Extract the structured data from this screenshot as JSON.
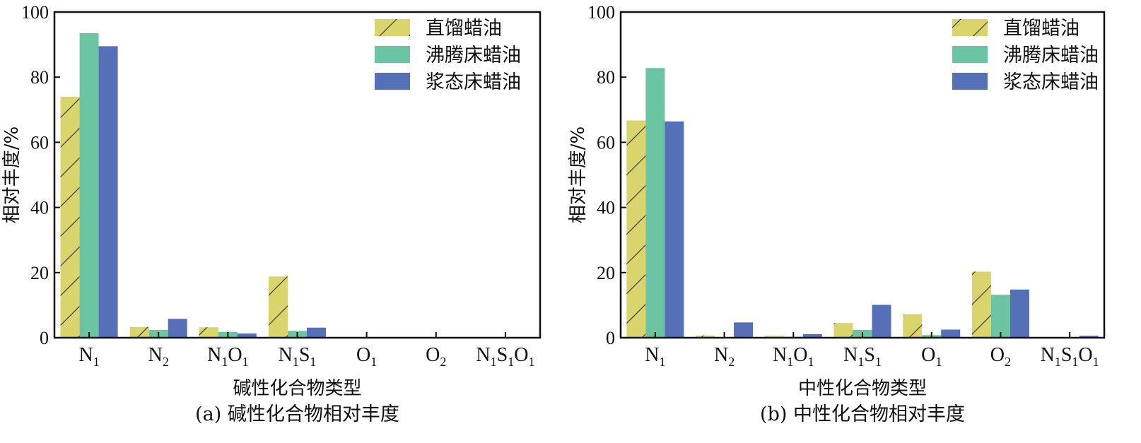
{
  "legend": [
    "直馏蜡油",
    "沸腾床蜡油",
    "浆态床蜡油"
  ],
  "colors": {
    "series": [
      "#d9d46b",
      "#6cc5a2",
      "#5670b8"
    ],
    "hatch": "#444444",
    "axis": "#111111"
  },
  "chart_data": [
    {
      "type": "bar",
      "panel": "a",
      "categories": [
        {
          "main": "N",
          "sub": "1",
          "rest": []
        },
        {
          "main": "N",
          "sub": "2",
          "rest": []
        },
        {
          "main": "N",
          "sub": "1",
          "rest": [
            {
              "main": "O",
              "sub": "1"
            }
          ]
        },
        {
          "main": "N",
          "sub": "1",
          "rest": [
            {
              "main": "S",
              "sub": "1"
            }
          ]
        },
        {
          "main": "O",
          "sub": "1",
          "rest": []
        },
        {
          "main": "O",
          "sub": "2",
          "rest": []
        },
        {
          "main": "N",
          "sub": "1",
          "rest": [
            {
              "main": "S",
              "sub": "1"
            },
            {
              "main": "O",
              "sub": "1"
            }
          ]
        }
      ],
      "series": [
        {
          "name": "直馏蜡油",
          "values": [
            74.0,
            3.3,
            3.2,
            18.8,
            0,
            0,
            0
          ]
        },
        {
          "name": "沸腾床蜡油",
          "values": [
            93.5,
            2.4,
            1.8,
            2.1,
            0,
            0,
            0
          ]
        },
        {
          "name": "浆态床蜡油",
          "values": [
            89.5,
            5.8,
            1.3,
            3.1,
            0,
            0,
            0
          ]
        }
      ],
      "yticks": [
        "0",
        "20",
        "40",
        "60",
        "80",
        "100"
      ],
      "ylim": [
        0,
        100
      ],
      "ylabel": "相对丰度/%",
      "xlabel": "碱性化合物类型",
      "caption": "(a) 碱性化合物相对丰度",
      "legend_position": "top-right"
    },
    {
      "type": "bar",
      "panel": "b",
      "categories": [
        {
          "main": "N",
          "sub": "1",
          "rest": []
        },
        {
          "main": "N",
          "sub": "2",
          "rest": []
        },
        {
          "main": "N",
          "sub": "1",
          "rest": [
            {
              "main": "O",
              "sub": "1"
            }
          ]
        },
        {
          "main": "N",
          "sub": "1",
          "rest": [
            {
              "main": "S",
              "sub": "1"
            }
          ]
        },
        {
          "main": "O",
          "sub": "1",
          "rest": []
        },
        {
          "main": "O",
          "sub": "2",
          "rest": []
        },
        {
          "main": "N",
          "sub": "1",
          "rest": [
            {
              "main": "S",
              "sub": "1"
            },
            {
              "main": "O",
              "sub": "1"
            }
          ]
        }
      ],
      "series": [
        {
          "name": "直馏蜡油",
          "values": [
            66.7,
            0.7,
            0.6,
            4.5,
            7.2,
            20.3,
            0
          ]
        },
        {
          "name": "沸腾床蜡油",
          "values": [
            82.8,
            0.2,
            0.3,
            2.4,
            0.8,
            13.2,
            0.2
          ]
        },
        {
          "name": "浆态床蜡油",
          "values": [
            66.4,
            4.7,
            1.1,
            10.1,
            2.5,
            14.8,
            0.6
          ]
        }
      ],
      "yticks": [
        "0",
        "20",
        "40",
        "60",
        "80",
        "100"
      ],
      "ylim": [
        0,
        100
      ],
      "ylabel": "相对丰度/%",
      "xlabel": "中性化合物类型",
      "caption": "(b) 中性化合物相对丰度",
      "legend_position": "top-right"
    }
  ]
}
